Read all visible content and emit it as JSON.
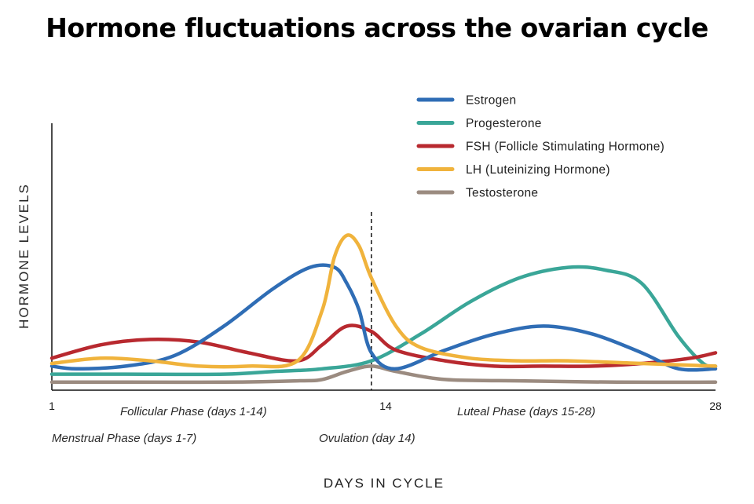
{
  "title": "Hormone fluctuations across the ovarian cycle",
  "chart_data": {
    "type": "line",
    "title": "Hormone fluctuations across the ovarian cycle",
    "xlabel": "DAYS IN CYCLE",
    "ylabel": "HORMONE LEVELS",
    "xlim": [
      1,
      28
    ],
    "ylim": [
      0,
      100
    ],
    "x_ticks": [
      "1",
      "14",
      "28"
    ],
    "grid": false,
    "legend_position": "top-right",
    "annotations": {
      "ovulation_line_day": 14,
      "phases": [
        {
          "label": "Follicular Phase (days 1-14)",
          "row": 1
        },
        {
          "label": "Luteal Phase (days 15-28)",
          "row": 1
        },
        {
          "label": "Menstrual Phase (days 1-7)",
          "row": 2
        },
        {
          "label": "Ovulation (day 14)",
          "row": 2
        }
      ]
    },
    "series": [
      {
        "name": "Estrogen",
        "color": "#2f6db5",
        "x": [
          1,
          2,
          4,
          6,
          8,
          10,
          11.5,
          12.5,
          13,
          13.5,
          14,
          15,
          17,
          19,
          21,
          23,
          25,
          26.5,
          28
        ],
        "values": [
          9,
          8,
          9,
          13,
          24,
          38,
          46,
          46,
          40,
          30,
          14,
          8,
          15,
          21,
          24,
          21,
          14,
          8,
          8
        ]
      },
      {
        "name": "Progesterone",
        "color": "#3aa698",
        "x": [
          1,
          4,
          8,
          10,
          12,
          14,
          16,
          18,
          20,
          22,
          23.5,
          25,
          26.5,
          27.5,
          28
        ],
        "values": [
          6,
          6,
          6,
          7,
          8,
          11,
          21,
          33,
          42,
          46,
          45,
          40,
          20,
          10,
          9
        ]
      },
      {
        "name": "FSH (Follicle Stimulating Hormone)",
        "color": "#b8292f",
        "x": [
          1,
          3,
          5,
          7,
          9,
          11,
          12,
          13,
          14,
          15,
          17,
          19,
          21,
          23,
          25,
          27,
          28
        ],
        "values": [
          12,
          17,
          19,
          18,
          14,
          11,
          17,
          24,
          22,
          15,
          11,
          9,
          9,
          9,
          10,
          12,
          14
        ]
      },
      {
        "name": "LH (Luteinizing Hormone)",
        "color": "#f0b33c",
        "x": [
          1,
          3,
          5,
          7,
          9,
          11,
          12,
          12.5,
          13,
          13.5,
          14,
          15,
          16,
          18,
          20,
          22,
          25,
          28
        ],
        "values": [
          10,
          12,
          11,
          9,
          9,
          11,
          30,
          50,
          58,
          54,
          42,
          24,
          16,
          12,
          11,
          11,
          10,
          9
        ]
      },
      {
        "name": "Testosterone",
        "color": "#9b8b80",
        "x": [
          1,
          4,
          8,
          11,
          12,
          13,
          14,
          15,
          17,
          20,
          24,
          28
        ],
        "values": [
          3,
          3,
          3,
          3.5,
          4,
          7,
          9,
          7,
          4,
          3.5,
          3,
          3
        ]
      }
    ]
  }
}
